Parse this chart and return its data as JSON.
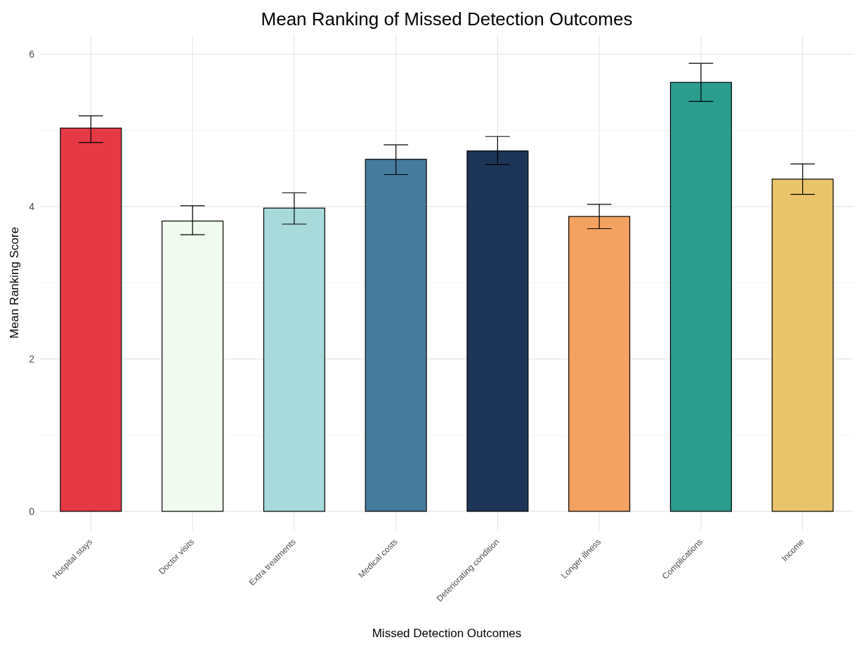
{
  "chart_data": {
    "type": "bar",
    "title": "Mean Ranking of Missed Detection Outcomes",
    "xlabel": "Missed Detection Outcomes",
    "ylabel": "Mean Ranking Score",
    "categories": [
      "Hospital stays",
      "Doctor visits",
      "Extra treatments",
      "Medical costs",
      "Deteriorating condition",
      "Longer illness",
      "Complications",
      "Income"
    ],
    "values": [
      5.03,
      3.81,
      3.98,
      4.62,
      4.73,
      3.87,
      5.63,
      4.36
    ],
    "colors": [
      "#e63946",
      "#f1faee",
      "#a8dadc",
      "#457b9d",
      "#1d3557",
      "#f4a261",
      "#2a9d8f",
      "#e9c46a"
    ],
    "errors": [
      [
        4.84,
        5.19
      ],
      [
        3.63,
        4.01
      ],
      [
        3.77,
        4.18
      ],
      [
        4.42,
        4.81
      ],
      [
        4.55,
        4.92
      ],
      [
        3.71,
        4.03
      ],
      [
        5.38,
        5.88
      ],
      [
        4.16,
        4.56
      ]
    ],
    "ylim": [
      -0.25,
      6.25
    ],
    "yticks": [
      0,
      {
        "value": 1,
        "label": null
      },
      2,
      {
        "value": 3,
        "label": null
      },
      4,
      {
        "value": 5,
        "label": null
      },
      6
    ],
    "grid": true
  }
}
